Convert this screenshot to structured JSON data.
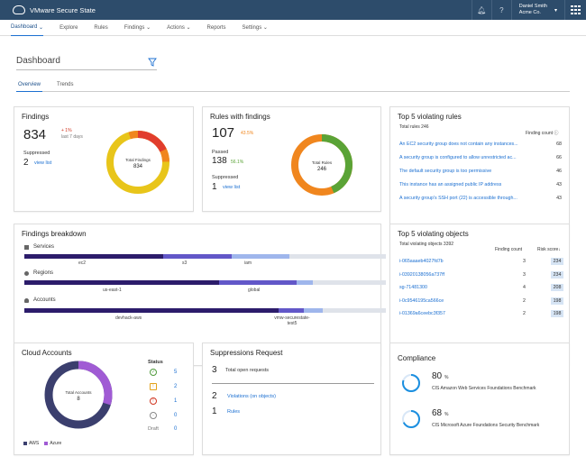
{
  "app": {
    "title": "VMware Secure State"
  },
  "user": {
    "name": "Daniel Smith",
    "org": "Acme Co."
  },
  "nav": [
    "Dashboard",
    "Explore",
    "Rules",
    "Findings",
    "Actions",
    "Reports",
    "Settings"
  ],
  "page": {
    "title": "Dashboard",
    "tabs": [
      "Overview",
      "Trends"
    ]
  },
  "findings": {
    "title": "Findings",
    "total": "834",
    "delta": "+ 1%",
    "period": "last 7 days",
    "suppressed_label": "Suppressed",
    "suppressed": "2",
    "view_list": "view list",
    "donut_label": "Total Findings",
    "donut_value": "834"
  },
  "rules": {
    "title": "Rules with findings",
    "total": "107",
    "pct": "43.5%",
    "passed_label": "Passed",
    "passed": "138",
    "passed_pct": "56.1%",
    "suppressed_label": "Suppressed",
    "suppressed": "1",
    "view_list": "view list",
    "donut_label": "Total Rules",
    "donut_value": "246"
  },
  "top_rules": {
    "title": "Top 5 violating rules",
    "subtitle": "Total rules 246",
    "col": "Finding count",
    "rows": [
      {
        "name": "An EC2 security group does not contain any instances...",
        "count": "68"
      },
      {
        "name": "A security group is configured to allow unrestricted ac...",
        "count": "66"
      },
      {
        "name": "The default security group is too permissive",
        "count": "46"
      },
      {
        "name": "This instance has an assigned public IP address",
        "count": "43"
      },
      {
        "name": "A security group's SSH port (22) is accessible through...",
        "count": "43"
      }
    ]
  },
  "breakdown": {
    "title": "Findings breakdown",
    "groups": [
      {
        "label": "Services",
        "segments": [
          "ec2",
          "s3",
          "iam"
        ]
      },
      {
        "label": "Regions",
        "segments": [
          "us-east-1",
          "global"
        ]
      },
      {
        "label": "Accounts",
        "segments": [
          "devhack-aws",
          "vmw-securestate-test5"
        ]
      }
    ]
  },
  "top_objects": {
    "title": "Top 5 violating objects",
    "subtitle": "Total violating objects 3392",
    "col1": "Finding count",
    "col2": "Risk score",
    "rows": [
      {
        "name": "i-065aaaeb4027fd7b",
        "count": "3",
        "score": "234"
      },
      {
        "name": "i-03920138056a737ff",
        "count": "3",
        "score": "234"
      },
      {
        "name": "sg-71481300",
        "count": "4",
        "score": "208"
      },
      {
        "name": "i-0c9546195ca566ce",
        "count": "2",
        "score": "198"
      },
      {
        "name": "i-01369a6ceebc3f357",
        "count": "2",
        "score": "198"
      }
    ]
  },
  "accounts": {
    "title": "Cloud Accounts",
    "donut_label": "Total Accounts",
    "donut_value": "8",
    "status_title": "Status",
    "status": [
      {
        "icon": "check-circle-icon",
        "value": "5",
        "color": "#4f9a3b"
      },
      {
        "icon": "warning-triangle-icon",
        "value": "2",
        "color": "#e3a21a"
      },
      {
        "icon": "error-circle-icon",
        "value": "1",
        "color": "#d0341f"
      },
      {
        "icon": "pending-circle-icon",
        "value": "0",
        "color": "#888888"
      }
    ],
    "draft_label": "Draft",
    "draft_value": "0",
    "legend": [
      "AWS",
      "Azure"
    ]
  },
  "suppressions": {
    "title": "Suppressions Request",
    "open_count": "3",
    "open_label": "Total open requests",
    "violations_count": "2",
    "violations_label": "Violations (on objects)",
    "rules_count": "1",
    "rules_label": "Rules"
  },
  "compliance": {
    "title": "Compliance",
    "items": [
      {
        "pct": "80",
        "unit": "%",
        "label": "CIS Amazon Web Services Foundations Benchmark",
        "fill": 0.8
      },
      {
        "pct": "68",
        "unit": "%",
        "label": "CIS Microsoft Azure Foundations Security Benchmark",
        "fill": 0.68
      }
    ]
  },
  "colors": {
    "header": "#2d4c6b",
    "accent": "#1b6fd1",
    "red": "#e13d2d",
    "orange": "#f0861e",
    "yellow": "#e8c51a",
    "green": "#5aa336",
    "navy": "#2c1c6b",
    "aws": "#3b3f6e",
    "azure": "#a05bd4"
  }
}
